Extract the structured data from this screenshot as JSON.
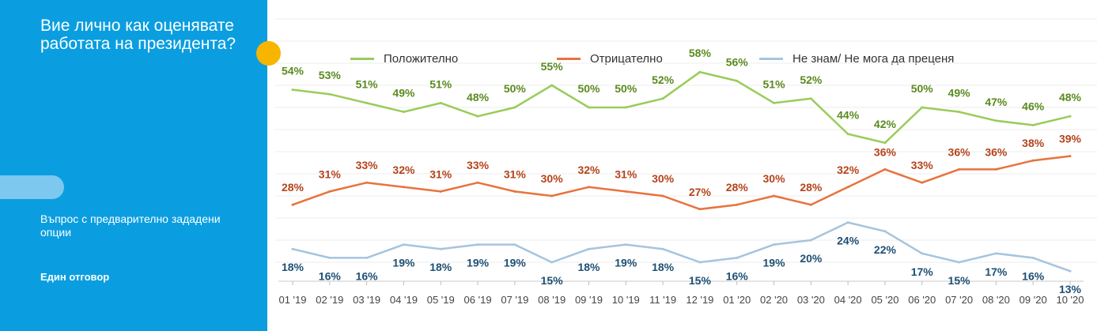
{
  "sidebar": {
    "title": "Вие лично как оценявате работата на президента?",
    "note": "Въпрос с предварително зададени опции",
    "note2": "Един отговор"
  },
  "chart_data": {
    "type": "line",
    "title": "",
    "xlabel": "",
    "ylabel": "",
    "ylim": [
      0,
      100
    ],
    "grid": true,
    "legend_position": "top",
    "categories": [
      "01 '19",
      "02 '19",
      "03 '19",
      "04 '19",
      "05 '19",
      "06 '19",
      "07 '19",
      "08 '19",
      "09 '19",
      "10 '19",
      "11 '19",
      "12 '19",
      "01 '20",
      "02 '20",
      "03 '20",
      "04 '20",
      "05 '20",
      "06 '20",
      "07 '20",
      "08 '20",
      "09 '20",
      "10 '20"
    ],
    "series": [
      {
        "name": "Положително",
        "line_color": "#99cc5a",
        "label_color": "#5a8a1e",
        "values": [
          54,
          53,
          51,
          49,
          51,
          48,
          50,
          55,
          50,
          50,
          52,
          58,
          56,
          51,
          52,
          44,
          42,
          50,
          49,
          47,
          46,
          48
        ]
      },
      {
        "name": "Отрицателно",
        "line_color": "#e8733d",
        "label_color": "#b4431a",
        "values": [
          28,
          31,
          33,
          32,
          31,
          33,
          31,
          30,
          32,
          31,
          30,
          27,
          28,
          30,
          28,
          32,
          36,
          33,
          36,
          36,
          38,
          39
        ]
      },
      {
        "name": "Не знам/ Не мога да преценя",
        "line_color": "#a6c4dd",
        "label_color": "#1e4f73",
        "values": [
          18,
          16,
          16,
          19,
          18,
          19,
          19,
          15,
          18,
          19,
          18,
          15,
          16,
          19,
          20,
          24,
          22,
          17,
          15,
          17,
          16,
          13
        ]
      }
    ]
  }
}
